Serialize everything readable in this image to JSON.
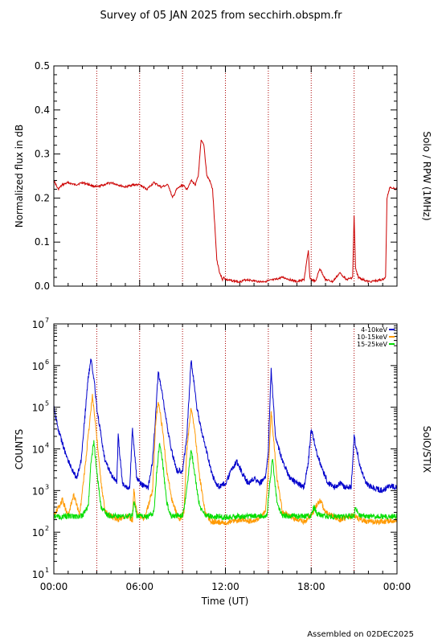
{
  "title": "Survey of 05 JAN 2025 from secchirh.obspm.fr",
  "footer": "Assembled on 02DEC2025",
  "chart_data": [
    {
      "type": "line",
      "ylabel": "Normalized flux in dB",
      "right_label": "Solo / RPW (1MHz)",
      "xlim": [
        0,
        24
      ],
      "ylim": [
        0,
        0.5
      ],
      "y_ticks": [
        "0.0",
        "0.1",
        "0.2",
        "0.3",
        "0.4",
        "0.5"
      ],
      "y_tick_values": [
        0,
        0.1,
        0.2,
        0.3,
        0.4,
        0.5
      ],
      "vlines_hours": [
        3,
        6,
        9,
        12,
        15,
        18,
        21
      ],
      "series": [
        {
          "color": "#cc0000",
          "x": [
            0,
            0.3,
            0.6,
            1,
            1.5,
            2,
            2.5,
            3,
            3.5,
            4,
            4.5,
            5,
            5.5,
            6,
            6.5,
            7,
            7.5,
            8,
            8.3,
            8.6,
            9,
            9.3,
            9.6,
            9.9,
            10.1,
            10.3,
            10.5,
            10.7,
            10.9,
            11.1,
            11.4,
            11.6,
            11.8,
            11.9,
            12,
            12.5,
            13,
            13.5,
            14,
            14.5,
            15,
            15.5,
            16,
            16.5,
            17,
            17.5,
            17.8,
            17.9,
            18,
            18.3,
            18.6,
            19,
            19.5,
            20,
            20.5,
            20.9,
            21,
            21.1,
            21.3,
            21.6,
            22,
            22.5,
            23,
            23.2,
            23.3,
            23.5,
            24
          ],
          "values": [
            0.24,
            0.22,
            0.23,
            0.235,
            0.23,
            0.235,
            0.23,
            0.225,
            0.23,
            0.235,
            0.23,
            0.225,
            0.23,
            0.23,
            0.22,
            0.235,
            0.225,
            0.23,
            0.2,
            0.22,
            0.23,
            0.22,
            0.24,
            0.23,
            0.25,
            0.33,
            0.32,
            0.25,
            0.24,
            0.22,
            0.06,
            0.03,
            0.015,
            0.02,
            0.015,
            0.012,
            0.01,
            0.015,
            0.012,
            0.01,
            0.012,
            0.015,
            0.02,
            0.015,
            0.01,
            0.015,
            0.08,
            0.02,
            0.015,
            0.01,
            0.04,
            0.015,
            0.01,
            0.03,
            0.015,
            0.02,
            0.16,
            0.04,
            0.02,
            0.015,
            0.01,
            0.012,
            0.015,
            0.02,
            0.2,
            0.225,
            0.22
          ]
        }
      ]
    },
    {
      "type": "line",
      "ylabel": "COUNTS",
      "right_label": "SolO/STIX",
      "xlabel": "Time (UT)",
      "xlim": [
        0,
        24
      ],
      "ylog": true,
      "ylim": [
        10,
        10000000
      ],
      "y_tick_values": [
        10,
        100,
        1000,
        10000,
        100000,
        1000000,
        10000000
      ],
      "y_tick_exponents": [
        "1",
        "2",
        "3",
        "4",
        "5",
        "6",
        "7"
      ],
      "x_ticks": [
        "00:00",
        "06:00",
        "12:00",
        "18:00",
        "00:00"
      ],
      "x_tick_values": [
        0,
        6,
        12,
        18,
        24
      ],
      "vlines_hours": [
        3,
        6,
        9,
        12,
        15,
        18,
        21
      ],
      "legend_position": "top-right",
      "series": [
        {
          "name": "4-10keV",
          "color": "#0000cc",
          "x": [
            0,
            0.3,
            0.8,
            1.3,
            1.6,
            1.9,
            2.1,
            2.4,
            2.6,
            2.8,
            3.0,
            3.3,
            3.6,
            4.0,
            4.4,
            4.5,
            4.8,
            5.3,
            5.5,
            5.8,
            6.0,
            6.3,
            6.6,
            6.9,
            7.1,
            7.3,
            7.6,
            7.9,
            8.2,
            8.6,
            9.0,
            9.3,
            9.6,
            9.8,
            10.0,
            10.3,
            10.7,
            11.0,
            11.3,
            11.6,
            12.0,
            12.4,
            12.8,
            13.2,
            13.6,
            14.0,
            14.4,
            14.8,
            15.0,
            15.2,
            15.5,
            16.0,
            16.5,
            17.0,
            17.5,
            17.8,
            18.0,
            18.4,
            18.8,
            19.2,
            19.6,
            20.0,
            20.4,
            20.8,
            21.0,
            21.4,
            21.8,
            22.2,
            22.6,
            23.0,
            23.5,
            24.0
          ],
          "values": [
            100000,
            30000,
            8000,
            3000,
            2000,
            5000,
            30000,
            500000,
            1400000,
            500000,
            100000,
            20000,
            5000,
            2500,
            1500,
            20000,
            1500,
            1100,
            30000,
            2000,
            1500,
            1300,
            1200,
            5000,
            50000,
            700000,
            200000,
            40000,
            10000,
            3000,
            3000,
            20000,
            1300000,
            400000,
            100000,
            30000,
            8000,
            3000,
            1500,
            1200,
            1500,
            3000,
            5000,
            2500,
            1500,
            2000,
            1500,
            2000,
            10000,
            800000,
            20000,
            5000,
            2000,
            1500,
            1200,
            5000,
            30000,
            8000,
            3000,
            1500,
            1200,
            1500,
            1200,
            1200,
            20000,
            4000,
            1500,
            1200,
            1100,
            1000,
            1300,
            1200
          ]
        },
        {
          "name": "10-15keV",
          "color": "#ff9900",
          "x": [
            0,
            0.6,
            1.0,
            1.4,
            1.8,
            2.1,
            2.4,
            2.7,
            3.0,
            3.3,
            3.6,
            4.0,
            4.5,
            5.0,
            5.5,
            5.6,
            5.8,
            6.3,
            6.9,
            7.1,
            7.3,
            7.6,
            7.9,
            8.3,
            8.8,
            9.1,
            9.3,
            9.6,
            9.9,
            10.2,
            10.6,
            11.0,
            12.0,
            13.0,
            14.0,
            14.8,
            15.0,
            15.2,
            15.6,
            16.0,
            17.0,
            17.5,
            18.0,
            18.3,
            18.6,
            19.0,
            20.0,
            21.0,
            21.5,
            22.0,
            23.0,
            24.0
          ],
          "values": [
            250,
            600,
            250,
            800,
            250,
            2000,
            20000,
            200000,
            20000,
            1500,
            300,
            250,
            200,
            250,
            200,
            1000,
            300,
            200,
            1000,
            30000,
            150000,
            30000,
            3000,
            500,
            200,
            300,
            10000,
            100000,
            20000,
            2000,
            300,
            180,
            170,
            200,
            180,
            300,
            3000,
            80000,
            2000,
            300,
            200,
            180,
            250,
            400,
            600,
            300,
            200,
            250,
            200,
            180,
            180,
            200
          ]
        },
        {
          "name": "15-25keV",
          "color": "#00dd00",
          "x": [
            0,
            0.5,
            1.0,
            1.5,
            2.0,
            2.4,
            2.6,
            2.8,
            3.0,
            3.3,
            3.8,
            4.5,
            5.0,
            5.5,
            5.6,
            5.8,
            6.5,
            7.0,
            7.2,
            7.4,
            7.6,
            7.9,
            8.2,
            9.0,
            9.3,
            9.6,
            9.9,
            10.2,
            10.6,
            12.0,
            13.0,
            14.0,
            14.9,
            15.1,
            15.3,
            15.6,
            16.0,
            17.0,
            18.0,
            18.2,
            18.4,
            19.0,
            20.0,
            21.0,
            21.1,
            21.3,
            22.0,
            23.0,
            24.0
          ],
          "values": [
            250,
            220,
            250,
            230,
            250,
            400,
            5000,
            15000,
            3000,
            400,
            250,
            240,
            240,
            250,
            600,
            250,
            230,
            300,
            3000,
            14000,
            5000,
            500,
            250,
            250,
            1000,
            10000,
            2000,
            400,
            250,
            230,
            240,
            240,
            250,
            1500,
            6000,
            500,
            250,
            240,
            250,
            400,
            280,
            240,
            240,
            250,
            400,
            250,
            240,
            240,
            240
          ]
        }
      ]
    }
  ]
}
